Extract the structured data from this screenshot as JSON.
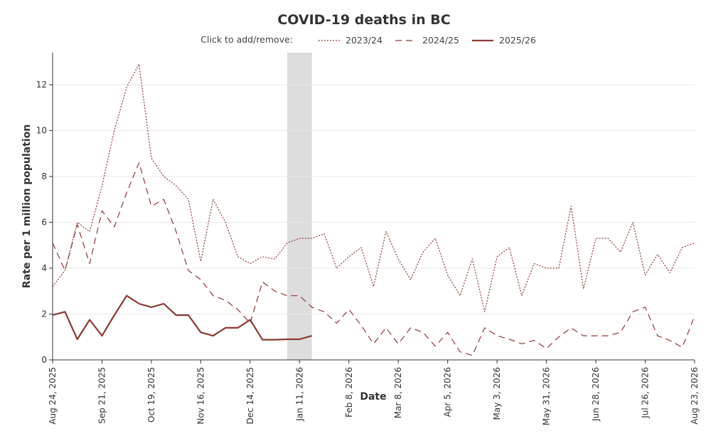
{
  "chart_data": {
    "type": "line",
    "title": "COVID-19 deaths in BC",
    "xlabel": "Date",
    "ylabel": "Rate per 1 million population",
    "legend_prefix": "Click to add/remove:",
    "legend_placement": "top",
    "ylim": [
      0,
      13.4
    ],
    "xlim": [
      0,
      364
    ],
    "y_ticks": [
      0,
      2,
      4,
      6,
      8,
      10,
      12
    ],
    "x_tick_labels": [
      "Aug 24, 2025",
      "Sep 21, 2025",
      "Oct 19, 2025",
      "Nov 16, 2025",
      "Dec 14, 2025",
      "Jan 11, 2026",
      "Feb 8, 2026",
      "Mar 8, 2026",
      "Apr 5, 2026",
      "May 3, 2026",
      "May 31, 2026",
      "Jun 28, 2026",
      "Jul 26, 2026",
      "Aug 23, 2026"
    ],
    "x_ticks_days": [
      0,
      28,
      56,
      84,
      112,
      140,
      168,
      196,
      224,
      252,
      280,
      308,
      336,
      364
    ],
    "grid_y": true,
    "highlight_band_days": [
      133,
      147
    ],
    "colors": {
      "line": "#8b3a34",
      "band": "#dddddd"
    },
    "series": [
      {
        "name": "2023/24",
        "style": "dotted",
        "x": [
          0,
          7,
          14,
          21,
          28,
          35,
          42,
          49,
          56,
          63,
          70,
          77,
          84,
          91,
          98,
          105,
          112,
          119,
          126,
          133,
          140,
          147,
          154,
          161,
          168,
          175,
          182,
          189,
          196,
          203,
          210,
          217,
          224,
          231,
          238,
          245,
          252,
          259,
          266,
          273,
          280,
          287,
          294,
          301,
          308,
          315,
          322,
          329,
          336,
          343,
          350,
          357,
          364
        ],
        "values": [
          3.2,
          3.9,
          6.0,
          5.6,
          7.6,
          10.0,
          11.9,
          12.9,
          8.8,
          8.0,
          7.6,
          7.0,
          4.3,
          7.0,
          6.0,
          4.5,
          4.2,
          4.5,
          4.4,
          5.1,
          5.3,
          5.3,
          5.5,
          4.0,
          4.5,
          4.9,
          3.2,
          5.6,
          4.4,
          3.5,
          4.7,
          5.3,
          3.7,
          2.8,
          4.4,
          2.1,
          4.5,
          4.9,
          2.8,
          4.2,
          4.0,
          4.0,
          6.7,
          3.1,
          5.3,
          5.3,
          4.7,
          6.0,
          3.7,
          4.6,
          3.8,
          4.9,
          5.1
        ]
      },
      {
        "name": "2024/25",
        "style": "dashed",
        "x": [
          0,
          7,
          14,
          21,
          28,
          35,
          42,
          49,
          56,
          63,
          70,
          77,
          84,
          91,
          98,
          105,
          112,
          119,
          126,
          133,
          140,
          147,
          154,
          161,
          168,
          175,
          182,
          189,
          196,
          203,
          210,
          217,
          224,
          231,
          238,
          245,
          252,
          259,
          266,
          273,
          280,
          287,
          294,
          301,
          308,
          315,
          322,
          329,
          336,
          343,
          350,
          357,
          364
        ],
        "values": [
          5.1,
          3.9,
          5.9,
          4.2,
          6.5,
          5.8,
          7.3,
          8.6,
          6.7,
          7.0,
          5.6,
          3.9,
          3.5,
          2.8,
          2.6,
          2.2,
          1.6,
          3.4,
          3.0,
          2.8,
          2.8,
          2.3,
          2.1,
          1.6,
          2.2,
          1.5,
          0.7,
          1.4,
          0.7,
          1.4,
          1.2,
          0.6,
          1.2,
          0.35,
          0.2,
          1.4,
          1.05,
          0.9,
          0.7,
          0.85,
          0.5,
          1.0,
          1.4,
          1.05,
          1.05,
          1.05,
          1.2,
          2.1,
          2.3,
          1.05,
          0.85,
          0.55,
          1.9
        ]
      },
      {
        "name": "2025/26",
        "style": "solid",
        "x": [
          0,
          7,
          14,
          21,
          28,
          35,
          42,
          49,
          56,
          63,
          70,
          77,
          84,
          91,
          98,
          105,
          112,
          119,
          126,
          133,
          140,
          147
        ],
        "values": [
          1.95,
          2.1,
          0.9,
          1.75,
          1.05,
          1.95,
          2.8,
          2.45,
          2.3,
          2.45,
          1.95,
          1.95,
          1.2,
          1.05,
          1.4,
          1.4,
          1.75,
          0.88,
          0.88,
          0.9,
          0.9,
          1.05
        ]
      }
    ]
  }
}
